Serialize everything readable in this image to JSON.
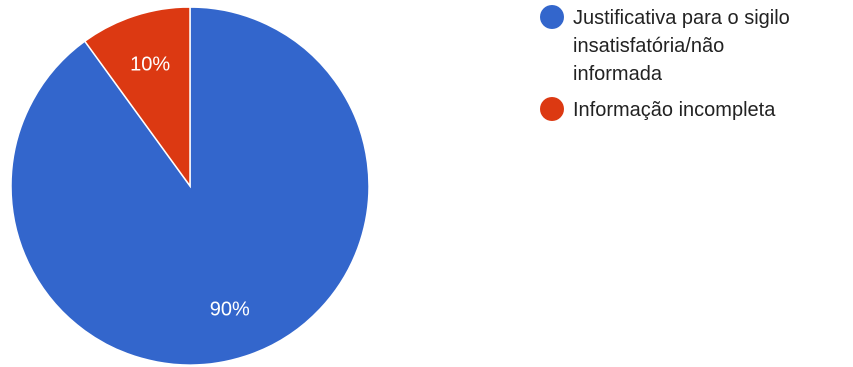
{
  "chart_data": {
    "type": "pie",
    "title": "",
    "legend_placement": "right",
    "slices": [
      {
        "label": "Justificativa para o sigilo insatisfatória/não informada",
        "value": 90,
        "display": "90%",
        "color": "#3366cc"
      },
      {
        "label": "Informação incompleta",
        "value": 10,
        "display": "10%",
        "color": "#dc3912"
      }
    ]
  },
  "legend": {
    "items": [
      {
        "label_lines": [
          "Justificativa para o sigilo",
          "insatisfatória/não",
          "informada"
        ],
        "color": "#3366cc"
      },
      {
        "label_lines": [
          "Informação incompleta"
        ],
        "color": "#dc3912"
      }
    ]
  }
}
